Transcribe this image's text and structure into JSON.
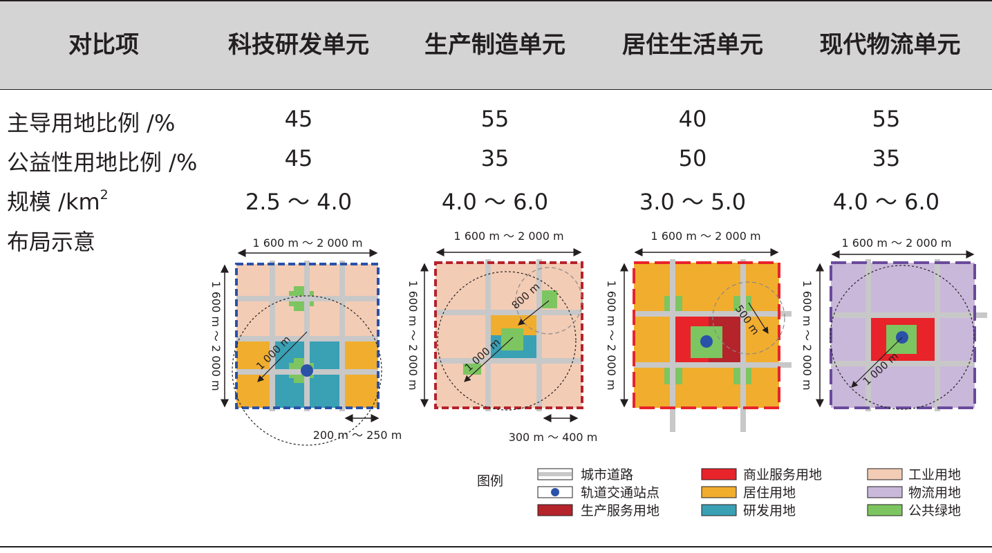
{
  "header": {
    "col0": "对比项",
    "col1": "科技研发单元",
    "col2": "生产制造单元",
    "col3": "居住生活单元",
    "col4": "现代物流单元"
  },
  "rows": {
    "dominant": {
      "label": "主导用地比例 /%",
      "values": [
        "45",
        "55",
        "40",
        "55"
      ]
    },
    "public": {
      "label": "公益性用地比例 /%",
      "values": [
        "45",
        "35",
        "50",
        "35"
      ]
    },
    "scale": {
      "label": "规模 /km",
      "label_sup": "2",
      "values": [
        "2.5 ～ 4.0",
        "4.0 ～ 6.0",
        "3.0 ～ 5.0",
        "4.0 ～ 6.0"
      ]
    },
    "layout": {
      "label": "布局示意"
    }
  },
  "diagrams": {
    "tech": {
      "width_dim": "1 600 m ～ 2 000 m",
      "height_dim": "1 600 m ～ 2 000 m",
      "radius_label": "1 000 m",
      "block_dim": "200 m ～ 250 m"
    },
    "prod": {
      "width_dim": "1 600 m ～ 2 000 m",
      "height_dim": "1 600 m ～ 2 000 m",
      "radius_label": "1 000 m",
      "small_radius_label": "800 m",
      "block_dim": "300 m ～ 400 m"
    },
    "res": {
      "width_dim": "1 600 m ～ 2 000 m",
      "height_dim": "1 600 m ～ 2 000 m",
      "small_radius_label": "500 m"
    },
    "logistics": {
      "width_dim": "1 600 m ～ 2 000 m",
      "height_dim": "1 600 m ～ 2 000 m",
      "radius_label": "1 000 m"
    }
  },
  "legend": {
    "title": "图例",
    "items": [
      "城市道路",
      "轨道交通站点",
      "生产服务用地",
      "商业服务用地",
      "居住用地",
      "研发用地",
      "工业用地",
      "物流用地",
      "公共绿地"
    ]
  },
  "colors": {
    "road": "#c8c8c8",
    "station": "#2a52a8",
    "production_service": "#b5232b",
    "commercial": "#e8232a",
    "residential": "#f1ad2e",
    "rnd": "#3aa0b4",
    "industrial": "#f3ccb5",
    "logistics": "#c9b8da",
    "green": "#7dc560",
    "border_tech": "#2a52a8",
    "border_prod": "#b5232b",
    "border_res": "#e8232a",
    "border_logistics": "#6a4a9c"
  }
}
